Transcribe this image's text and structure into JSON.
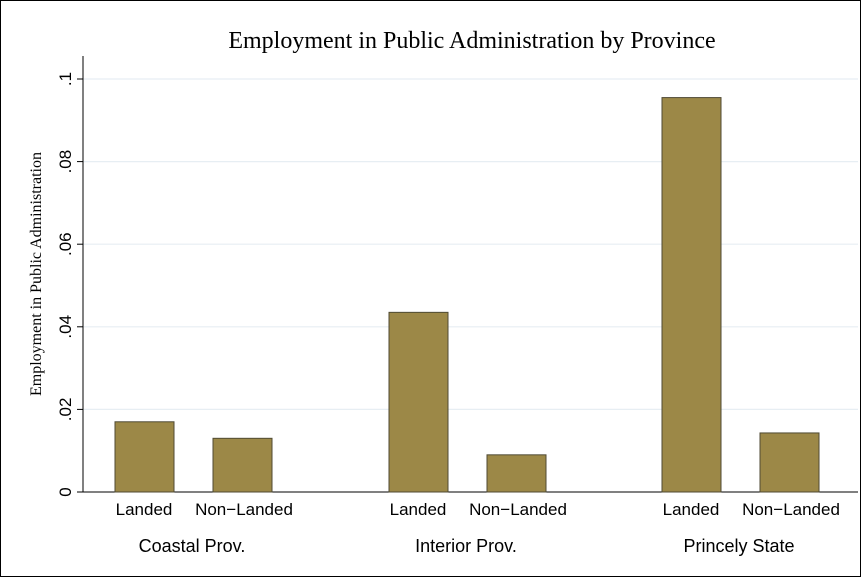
{
  "chart_data": {
    "type": "bar",
    "title": "Employment in Public Administration by Province",
    "xlabel": "",
    "ylabel": "Employment in Public Administration",
    "ylim": [
      0,
      0.1
    ],
    "yticks": [
      "0",
      ".02",
      ".04",
      ".06",
      ".08",
      ".1"
    ],
    "ytick_values": [
      0,
      0.02,
      0.04,
      0.06,
      0.08,
      0.1
    ],
    "grid": true,
    "bar_color": "#9c8847",
    "groups": [
      {
        "label": "Coastal Prov.",
        "bars": [
          {
            "label": "Landed",
            "value": 0.017
          },
          {
            "label": "Non−Landed",
            "value": 0.013
          }
        ]
      },
      {
        "label": "Interior Prov.",
        "bars": [
          {
            "label": "Landed",
            "value": 0.0435
          },
          {
            "label": "Non−Landed",
            "value": 0.009
          }
        ]
      },
      {
        "label": "Princely State",
        "bars": [
          {
            "label": "Landed",
            "value": 0.0955
          },
          {
            "label": "Non−Landed",
            "value": 0.0143
          }
        ]
      }
    ]
  }
}
